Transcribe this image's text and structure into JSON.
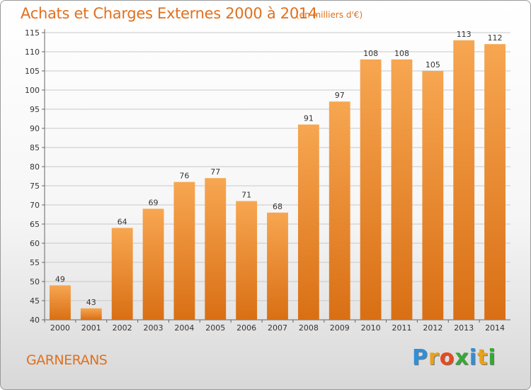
{
  "chart_data": {
    "type": "bar",
    "title": "Achats et Charges Externes 2000 à 2014",
    "subtitle": "(en milliers d'€)",
    "categories": [
      "2000",
      "2001",
      "2002",
      "2003",
      "2004",
      "2005",
      "2006",
      "2007",
      "2008",
      "2009",
      "2010",
      "2011",
      "2012",
      "2013",
      "2014"
    ],
    "values": [
      49,
      43,
      64,
      69,
      76,
      77,
      71,
      68,
      91,
      97,
      108,
      108,
      105,
      113,
      112
    ],
    "xlabel": "",
    "ylabel": "",
    "ylim": [
      40,
      115
    ],
    "yticks": [
      40,
      45,
      50,
      55,
      60,
      65,
      70,
      75,
      80,
      85,
      90,
      95,
      100,
      105,
      110,
      115
    ],
    "grid": true,
    "bar_color": "#f0943a"
  },
  "footer": {
    "commune": "GARNERANS",
    "logo_letters": [
      {
        "ch": "P",
        "color": "#2f8fd8"
      },
      {
        "ch": "r",
        "color": "#e8a21c"
      },
      {
        "ch": "o",
        "color": "#e84a1c"
      },
      {
        "ch": "x",
        "color": "#37a837"
      },
      {
        "ch": "i",
        "color": "#2f8fd8"
      },
      {
        "ch": "t",
        "color": "#e8a21c"
      },
      {
        "ch": "i",
        "color": "#37a837"
      }
    ]
  }
}
